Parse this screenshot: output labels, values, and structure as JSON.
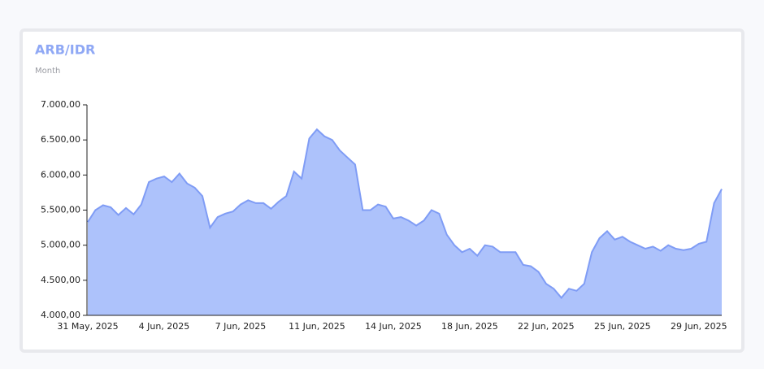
{
  "chart_data": {
    "type": "area",
    "title": "ARB/IDR",
    "subtitle": "Month",
    "categories": [
      "31 May, 2025",
      null,
      null,
      null,
      null,
      null,
      null,
      null,
      null,
      null,
      "4 Jun, 2025",
      null,
      null,
      null,
      null,
      null,
      null,
      null,
      null,
      null,
      "7 Jun, 2025",
      null,
      null,
      null,
      null,
      null,
      null,
      null,
      null,
      null,
      "11 Jun, 2025",
      null,
      null,
      null,
      null,
      null,
      null,
      null,
      null,
      null,
      "14 Jun, 2025",
      null,
      null,
      null,
      null,
      null,
      null,
      null,
      null,
      null,
      "18 Jun, 2025",
      null,
      null,
      null,
      null,
      null,
      null,
      null,
      null,
      null,
      "22 Jun, 2025",
      null,
      null,
      null,
      null,
      null,
      null,
      null,
      null,
      null,
      "25 Jun, 2025",
      null,
      null,
      null,
      null,
      null,
      null,
      null,
      null,
      null,
      "29 Jun, 2025",
      null,
      null,
      null
    ],
    "values": [
      5330,
      5500,
      5570,
      5540,
      5430,
      5530,
      5440,
      5580,
      5900,
      5950,
      5980,
      5900,
      6020,
      5880,
      5820,
      5700,
      5250,
      5400,
      5450,
      5480,
      5580,
      5640,
      5600,
      5600,
      5520,
      5620,
      5700,
      6050,
      5950,
      6520,
      6650,
      6550,
      6500,
      6350,
      6250,
      6150,
      5500,
      5500,
      5580,
      5550,
      5380,
      5400,
      5350,
      5280,
      5350,
      5500,
      5450,
      5150,
      5000,
      4900,
      4950,
      4850,
      5000,
      4980,
      4900,
      4900,
      4900,
      4720,
      4700,
      4620,
      4450,
      4380,
      4250,
      4380,
      4350,
      4450,
      4900,
      5100,
      5200,
      5080,
      5120,
      5050,
      5000,
      4950,
      4980,
      4920,
      5000,
      4950,
      4930,
      4950,
      5020,
      5050,
      5600,
      5800
    ],
    "color": "#7f9cf5",
    "fill": "#adc2fb",
    "ylim": [
      4000,
      7000
    ],
    "yticks": [
      {
        "value": 4000,
        "label": "4.000,00"
      },
      {
        "value": 4500,
        "label": "4.500,00"
      },
      {
        "value": 5000,
        "label": "5.000,00"
      },
      {
        "value": 5500,
        "label": "5.500,00"
      },
      {
        "value": 6000,
        "label": "6.000,00"
      },
      {
        "value": 6500,
        "label": "6.500,00"
      },
      {
        "value": 7000,
        "label": "7.000,00"
      }
    ]
  }
}
